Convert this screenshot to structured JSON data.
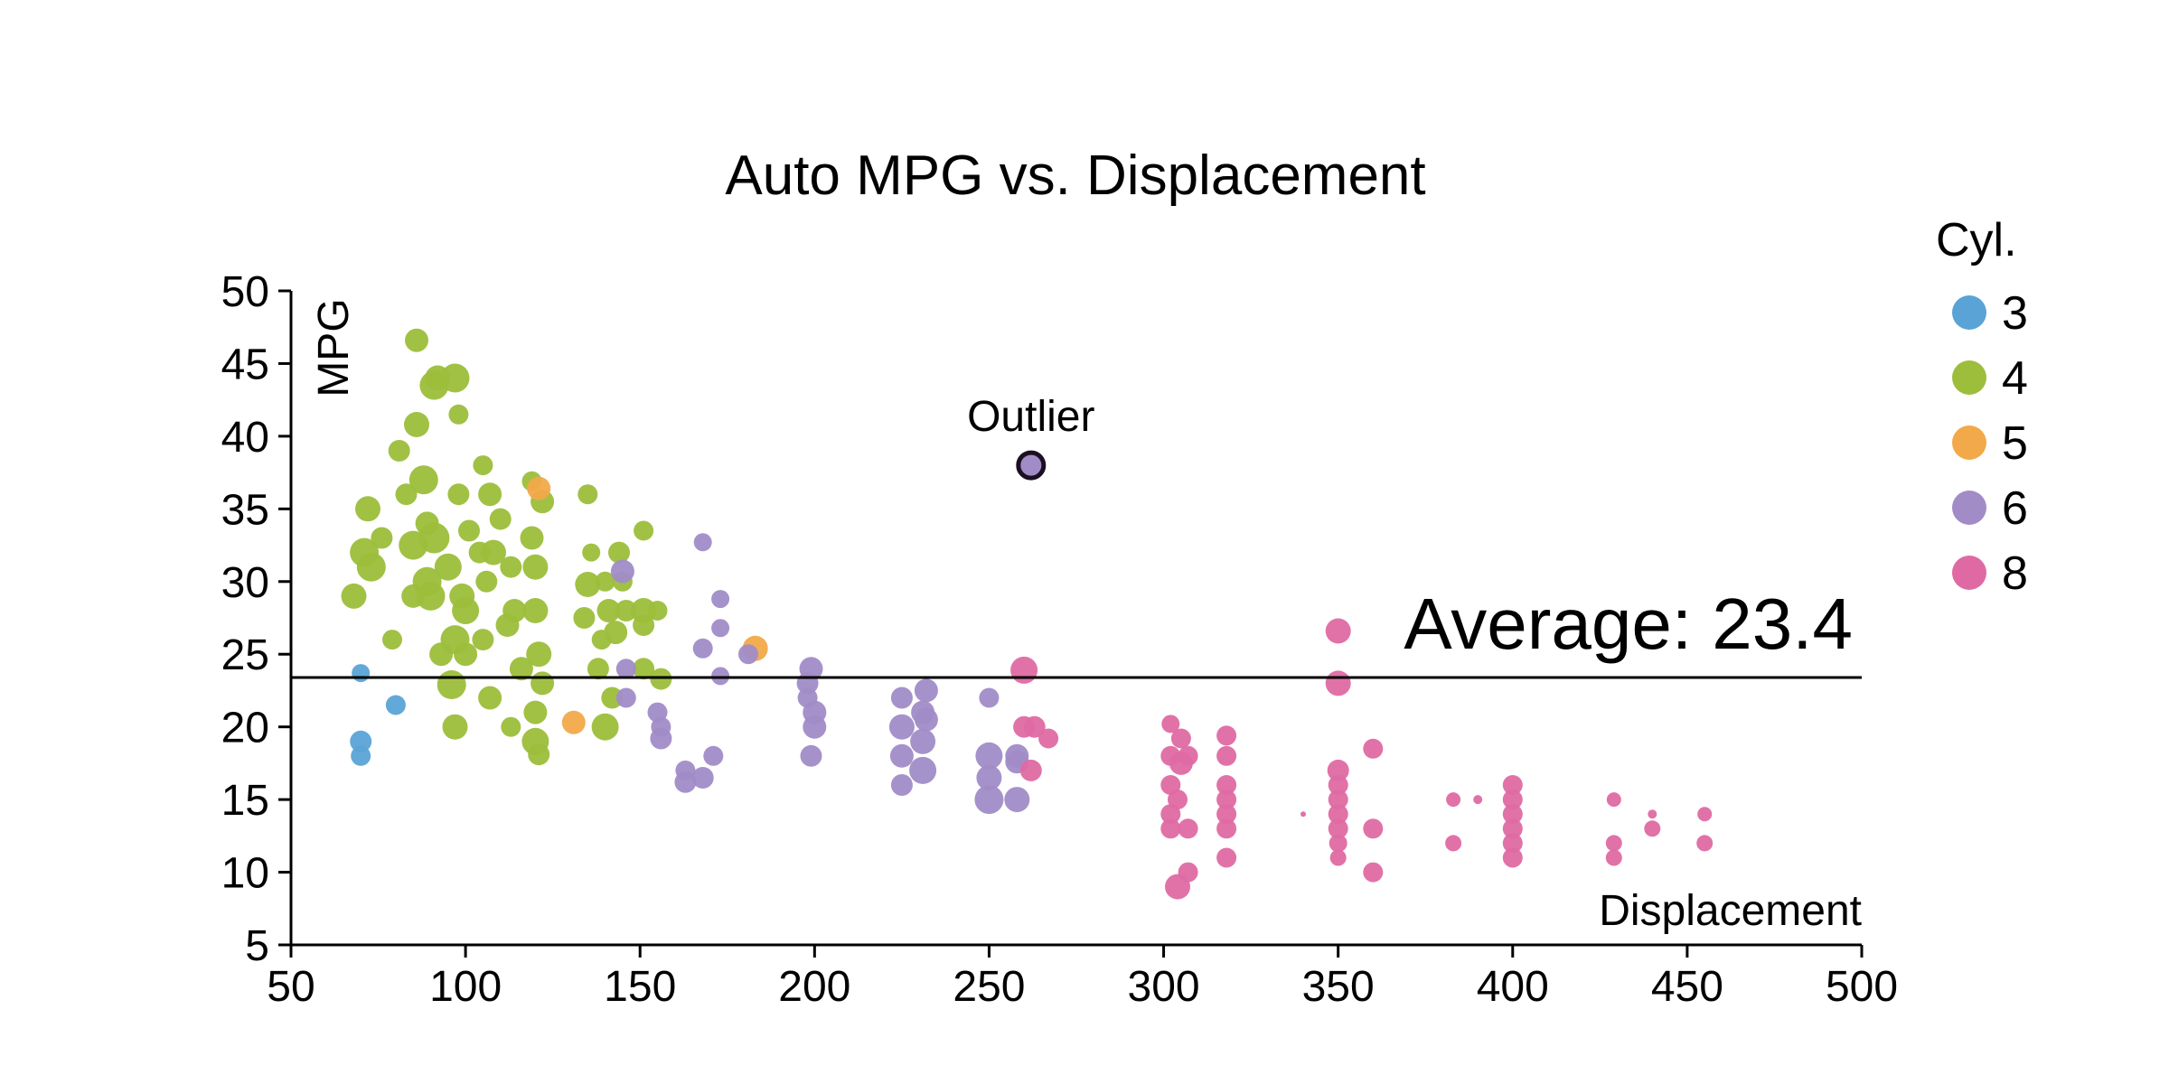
{
  "chart_data": {
    "type": "scatter",
    "title": "Auto MPG vs. Displacement",
    "xlabel": "Displacement",
    "ylabel": "MPG",
    "xlim": [
      50,
      500
    ],
    "ylim": [
      5,
      50
    ],
    "xticks": [
      50,
      100,
      150,
      200,
      250,
      300,
      350,
      400,
      450,
      500
    ],
    "yticks": [
      5,
      10,
      15,
      20,
      25,
      30,
      35,
      40,
      45,
      50
    ],
    "grid": false,
    "legend": {
      "title": "Cyl.",
      "placement": "right"
    },
    "annotations": {
      "outlier": {
        "label": "Outlier",
        "x": 262,
        "y": 38
      },
      "average": {
        "label": "Average: 23.4",
        "value": 23.4
      }
    },
    "series": [
      {
        "name": "3",
        "color": "#5aa3d6",
        "points": [
          [
            70,
            23.7,
            1
          ],
          [
            70,
            19,
            1.2
          ],
          [
            70,
            18,
            1.1
          ],
          [
            80,
            21.5,
            1.1
          ]
        ]
      },
      {
        "name": "4",
        "color": "#9cbe3b",
        "points": [
          [
            68,
            29,
            1.4
          ],
          [
            71,
            32,
            1.6
          ],
          [
            72,
            35,
            1.4
          ],
          [
            73,
            31,
            1.6
          ],
          [
            76,
            33,
            1.2
          ],
          [
            79,
            26,
            1.1
          ],
          [
            81,
            39,
            1.2
          ],
          [
            83,
            36,
            1.2
          ],
          [
            85,
            29,
            1.3
          ],
          [
            85,
            32.5,
            1.6
          ],
          [
            86,
            40.8,
            1.4
          ],
          [
            86,
            46.6,
            1.3
          ],
          [
            88,
            37,
            1.6
          ],
          [
            89,
            30,
            1.6
          ],
          [
            89,
            34,
            1.3
          ],
          [
            90,
            29,
            1.6
          ],
          [
            91,
            43.5,
            1.6
          ],
          [
            91,
            33,
            1.7
          ],
          [
            92,
            44,
            1.4
          ],
          [
            93,
            25,
            1.3
          ],
          [
            95,
            31,
            1.5
          ],
          [
            96,
            22.9,
            1.6
          ],
          [
            97,
            20,
            1.4
          ],
          [
            97,
            26,
            1.6
          ],
          [
            97,
            44,
            1.6
          ],
          [
            98,
            41.5,
            1.1
          ],
          [
            98,
            36,
            1.2
          ],
          [
            99,
            29,
            1.4
          ],
          [
            100,
            28,
            1.5
          ],
          [
            100,
            25,
            1.3
          ],
          [
            101,
            33.5,
            1.2
          ],
          [
            104,
            32,
            1.2
          ],
          [
            105,
            38,
            1.1
          ],
          [
            105,
            26,
            1.2
          ],
          [
            106,
            30,
            1.2
          ],
          [
            107,
            36,
            1.3
          ],
          [
            107,
            22,
            1.3
          ],
          [
            108,
            32,
            1.4
          ],
          [
            110,
            34.3,
            1.2
          ],
          [
            112,
            27,
            1.3
          ],
          [
            113,
            20,
            1.1
          ],
          [
            113,
            31,
            1.2
          ],
          [
            114,
            28,
            1.3
          ],
          [
            116,
            24,
            1.3
          ],
          [
            119,
            33,
            1.3
          ],
          [
            119,
            36.9,
            1.1
          ],
          [
            120,
            31,
            1.4
          ],
          [
            120,
            28,
            1.4
          ],
          [
            120,
            21,
            1.3
          ],
          [
            120,
            19,
            1.5
          ],
          [
            121,
            25,
            1.4
          ],
          [
            121,
            18.1,
            1.2
          ],
          [
            122,
            35.5,
            1.3
          ],
          [
            122,
            23,
            1.3
          ],
          [
            135,
            36,
            1.1
          ],
          [
            134,
            27.5,
            1.2
          ],
          [
            135,
            29.8,
            1.4
          ],
          [
            136,
            32,
            1.0
          ],
          [
            138,
            24,
            1.2
          ],
          [
            139,
            26,
            1.1
          ],
          [
            140,
            30,
            1.1
          ],
          [
            140,
            20,
            1.5
          ],
          [
            141,
            28,
            1.3
          ],
          [
            142,
            22,
            1.2
          ],
          [
            143,
            26.5,
            1.3
          ],
          [
            144,
            32,
            1.2
          ],
          [
            145,
            30,
            1.1
          ],
          [
            146,
            28,
            1.2
          ],
          [
            151,
            28,
            1.4
          ],
          [
            151,
            33.5,
            1.1
          ],
          [
            151,
            27,
            1.2
          ],
          [
            151,
            24,
            1.2
          ],
          [
            155,
            28,
            1.1
          ],
          [
            156,
            23.3,
            1.2
          ]
        ]
      },
      {
        "name": "5",
        "color": "#f2a94a",
        "points": [
          [
            121,
            36.4,
            1.3
          ],
          [
            131,
            20.3,
            1.3
          ],
          [
            183,
            25.4,
            1.4
          ]
        ]
      },
      {
        "name": "6",
        "color": "#a18cc7",
        "points": [
          [
            145,
            30.7,
            1.3
          ],
          [
            146,
            22,
            1.1
          ],
          [
            146,
            24,
            1.1
          ],
          [
            155,
            21,
            1.1
          ],
          [
            156,
            19.2,
            1.2
          ],
          [
            156,
            20,
            1.1
          ],
          [
            163,
            16.2,
            1.2
          ],
          [
            163,
            17,
            1.1
          ],
          [
            168,
            25.4,
            1.1
          ],
          [
            168,
            16.5,
            1.2
          ],
          [
            168,
            32.7,
            1.0
          ],
          [
            171,
            18,
            1.1
          ],
          [
            173,
            28.8,
            1.0
          ],
          [
            173,
            26.8,
            1.0
          ],
          [
            173,
            23.5,
            1.0
          ],
          [
            181,
            25,
            1.1
          ],
          [
            198,
            22,
            1.1
          ],
          [
            198,
            23,
            1.2
          ],
          [
            199,
            24,
            1.3
          ],
          [
            199,
            18,
            1.2
          ],
          [
            200,
            20,
            1.3
          ],
          [
            200,
            21,
            1.3
          ],
          [
            225,
            16,
            1.2
          ],
          [
            225,
            18,
            1.3
          ],
          [
            225,
            20,
            1.4
          ],
          [
            225,
            22,
            1.2
          ],
          [
            231,
            17,
            1.5
          ],
          [
            231,
            19,
            1.4
          ],
          [
            231,
            21,
            1.3
          ],
          [
            232,
            22.5,
            1.3
          ],
          [
            232,
            20.5,
            1.3
          ],
          [
            250,
            15,
            1.6
          ],
          [
            250,
            16.5,
            1.4
          ],
          [
            250,
            18,
            1.5
          ],
          [
            250,
            22,
            1.1
          ],
          [
            258,
            15,
            1.4
          ],
          [
            258,
            17.6,
            1.3
          ],
          [
            258,
            18,
            1.3
          ]
        ]
      },
      {
        "name": "8",
        "color": "#df6aa3",
        "points": [
          [
            260,
            23.9,
            1.5
          ],
          [
            260,
            20,
            1.2
          ],
          [
            262,
            17,
            1.2
          ],
          [
            263,
            20,
            1.2
          ],
          [
            267,
            19.2,
            1.1
          ],
          [
            302,
            20.2,
            1.0
          ],
          [
            302,
            18,
            1.1
          ],
          [
            302,
            16,
            1.1
          ],
          [
            302,
            14,
            1.1
          ],
          [
            302,
            13,
            1.1
          ],
          [
            304,
            15,
            1.1
          ],
          [
            304,
            9,
            1.4
          ],
          [
            305,
            17.5,
            1.3
          ],
          [
            305,
            19.2,
            1.1
          ],
          [
            307,
            10,
            1.1
          ],
          [
            307,
            13,
            1.1
          ],
          [
            307,
            18,
            1.1
          ],
          [
            318,
            19.4,
            1.1
          ],
          [
            318,
            18,
            1.1
          ],
          [
            318,
            16,
            1.1
          ],
          [
            318,
            14,
            1.1
          ],
          [
            318,
            13,
            1.1
          ],
          [
            318,
            11,
            1.1
          ],
          [
            318,
            15,
            1.1
          ],
          [
            340,
            14,
            0.3
          ],
          [
            350,
            26.6,
            1.4
          ],
          [
            350,
            23,
            1.4
          ],
          [
            350,
            17,
            1.2
          ],
          [
            350,
            16,
            1.1
          ],
          [
            350,
            15,
            1.1
          ],
          [
            350,
            14,
            1.1
          ],
          [
            350,
            13,
            1.1
          ],
          [
            350,
            12,
            1.0
          ],
          [
            350,
            11,
            0.9
          ],
          [
            360,
            18.5,
            1.1
          ],
          [
            360,
            13,
            1.1
          ],
          [
            360,
            10,
            1.1
          ],
          [
            383,
            15,
            0.8
          ],
          [
            383,
            12,
            0.9
          ],
          [
            390,
            15,
            0.5
          ],
          [
            400,
            16,
            1.1
          ],
          [
            400,
            15,
            1.1
          ],
          [
            400,
            14,
            1.1
          ],
          [
            400,
            13,
            1.1
          ],
          [
            400,
            12,
            1.1
          ],
          [
            400,
            11,
            1.1
          ],
          [
            429,
            15,
            0.8
          ],
          [
            429,
            12,
            0.9
          ],
          [
            429,
            11,
            0.9
          ],
          [
            440,
            14,
            0.5
          ],
          [
            440,
            13,
            0.9
          ],
          [
            455,
            14,
            0.8
          ],
          [
            455,
            12,
            0.9
          ]
        ]
      }
    ]
  }
}
